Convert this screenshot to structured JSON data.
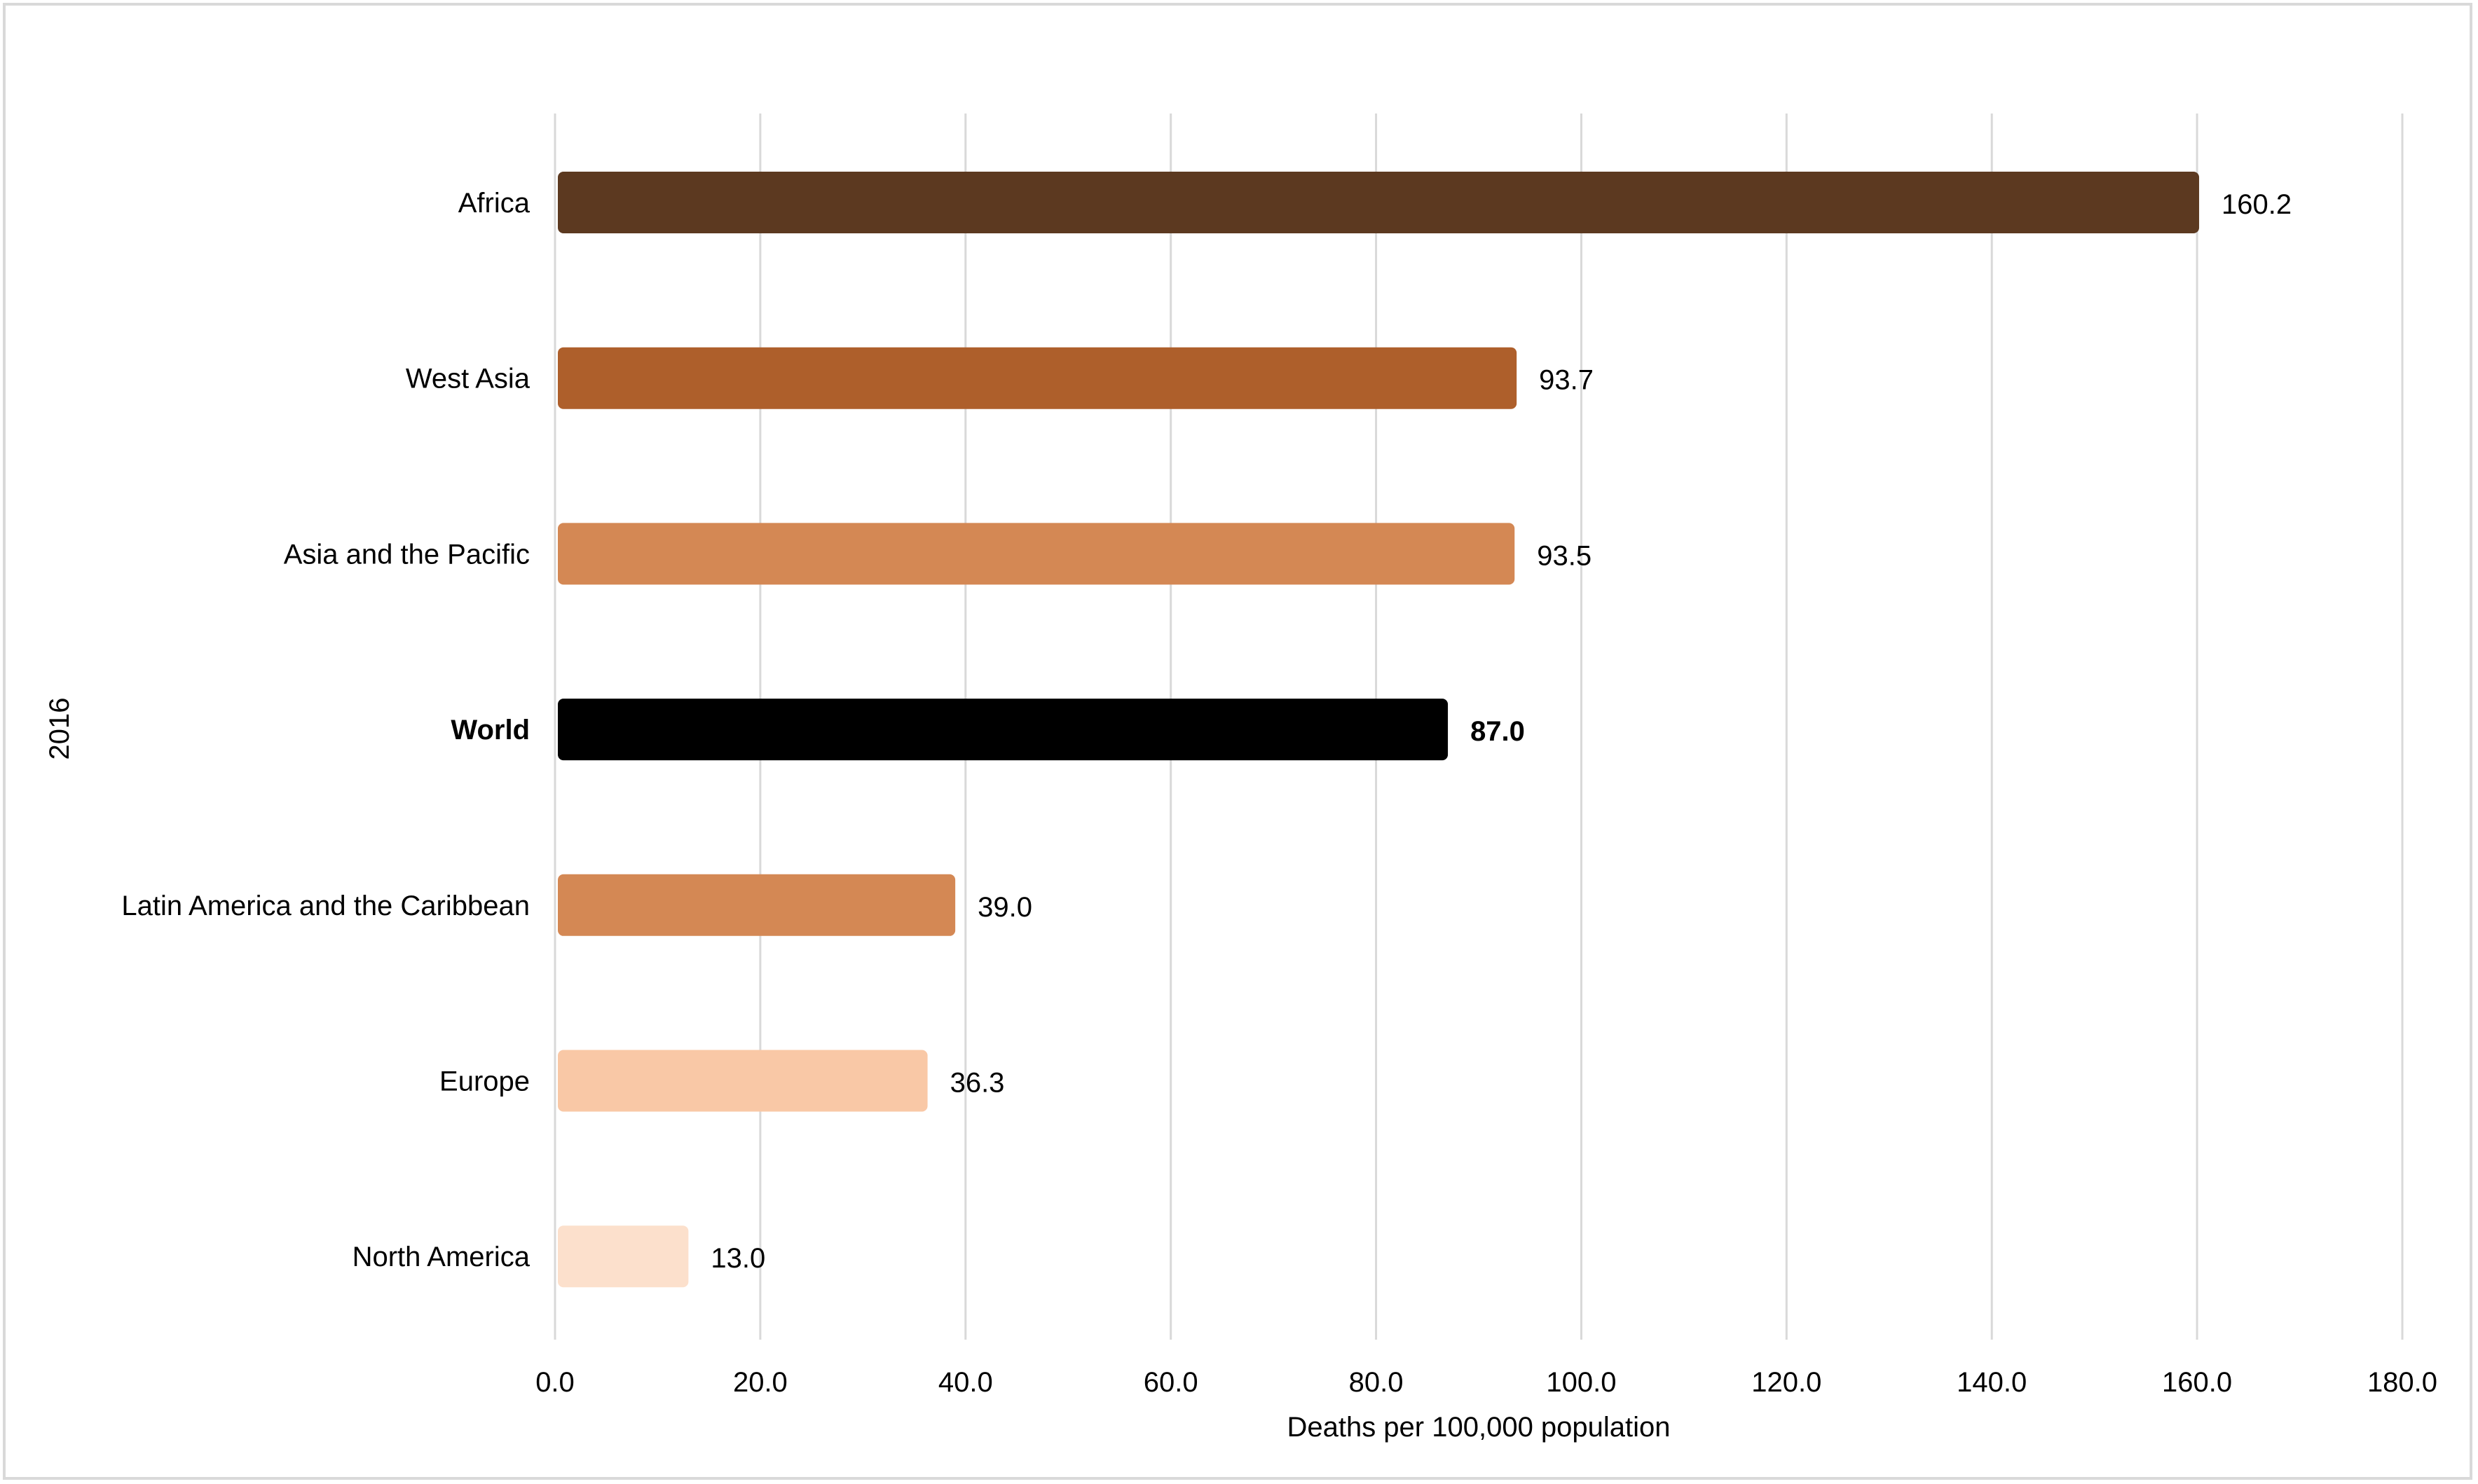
{
  "chart_data": {
    "type": "bar",
    "orientation": "horizontal",
    "title": "",
    "xlabel": "Deaths per 100,000 population",
    "ylabel": "2016",
    "xlim": [
      0,
      180
    ],
    "x_ticks": [
      "0.0",
      "20.0",
      "40.0",
      "60.0",
      "80.0",
      "100.0",
      "120.0",
      "140.0",
      "160.0",
      "180.0"
    ],
    "grid": "vertical",
    "categories": [
      "Africa",
      "West Asia",
      "Asia and the Pacific",
      "World",
      "Latin America and the Caribbean",
      "Europe",
      "North America"
    ],
    "values": [
      160.2,
      93.7,
      93.5,
      87.0,
      39.0,
      36.3,
      13.0
    ],
    "value_labels": [
      "160.2",
      "93.7",
      "93.5",
      "87.0",
      "39.0",
      "36.3",
      "13.0"
    ],
    "bold_categories": [
      "World"
    ],
    "colors": [
      "#5c3920",
      "#ae5f2b",
      "#d48854",
      "#000000",
      "#d48854",
      "#f9c8a6",
      "#fce0cc"
    ]
  }
}
